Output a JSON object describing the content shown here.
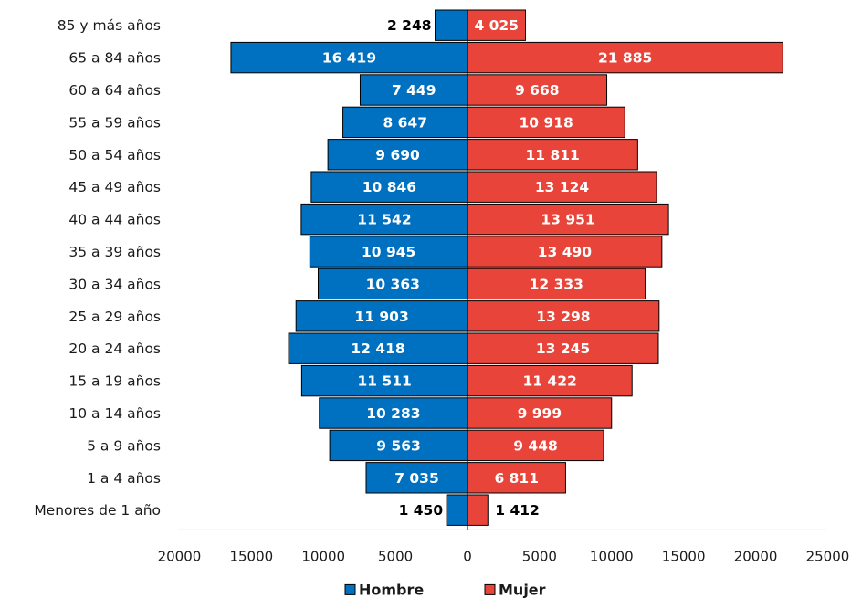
{
  "chart_data": {
    "type": "bar",
    "orientation": "horizontal",
    "layout": "population-pyramid",
    "categories": [
      "85 y más años",
      "65 a 84 años",
      "60 a 64 años",
      "55 a 59 años",
      "50 a 54 años",
      "45 a 49 años",
      "40 a 44 años",
      "35 a 39 años",
      "30 a 34 años",
      "25 a 29 años",
      "20 a 24 años",
      "15 a 19 años",
      "10 a 14 años",
      "5 a 9 años",
      "1 a 4 años",
      "Menores de 1 año"
    ],
    "series": [
      {
        "name": "Hombre",
        "color": "#0070c0",
        "values": [
          2248,
          16419,
          7449,
          8647,
          9690,
          10846,
          11542,
          10945,
          10363,
          11903,
          12418,
          11511,
          10283,
          9563,
          7035,
          1450
        ],
        "labels": [
          "2 248",
          "16 419",
          "7 449",
          "8 647",
          "9 690",
          "10 846",
          "11 542",
          "10 945",
          "10 363",
          "11 903",
          "12 418",
          "11 511",
          "10 283",
          "9 563",
          "7 035",
          "1 450"
        ]
      },
      {
        "name": "Mujer",
        "color": "#e8443a",
        "values": [
          4025,
          21885,
          9668,
          10918,
          11811,
          13124,
          13951,
          13490,
          12333,
          13298,
          13245,
          11422,
          9999,
          9448,
          6811,
          1412
        ],
        "labels": [
          "4 025",
          "21 885",
          "9 668",
          "10 918",
          "11 811",
          "13 124",
          "13 951",
          "13 490",
          "12 333",
          "13 298",
          "13 245",
          "11 422",
          "9 999",
          "9 448",
          "6 811",
          "1 412"
        ]
      }
    ],
    "xlim": [
      -20000,
      25000
    ],
    "xticks": [
      -20000,
      -15000,
      -10000,
      -5000,
      0,
      5000,
      10000,
      15000,
      20000,
      25000
    ],
    "xtick_labels": [
      "20000",
      "15000",
      "10000",
      "5000",
      "0",
      "5000",
      "10000",
      "15000",
      "20000",
      "25000"
    ],
    "title": "",
    "xlabel": "",
    "ylabel": "",
    "grid": false,
    "legend": "bottom"
  }
}
